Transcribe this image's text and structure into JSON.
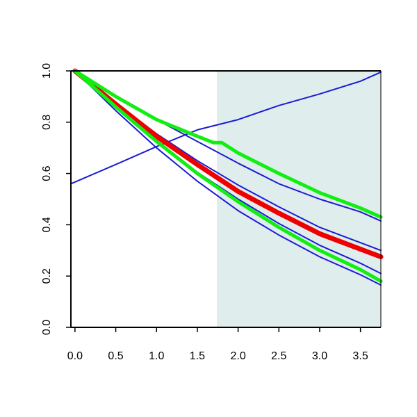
{
  "chart_data": {
    "type": "line",
    "title": "",
    "xlabel": "",
    "ylabel": "",
    "xlim": [
      -0.05,
      3.75
    ],
    "ylim": [
      0,
      1
    ],
    "x_ticks": [
      "0.0",
      "0.5",
      "1.0",
      "1.5",
      "2.0",
      "2.5",
      "3.0",
      "3.5"
    ],
    "y_ticks": [
      "0.0",
      "0.2",
      "0.4",
      "0.6",
      "0.8",
      "1.0"
    ],
    "shaded_region": {
      "x_from": 1.74,
      "x_to": 3.75,
      "color": "#e0eded"
    },
    "grid": false,
    "series": [
      {
        "color": "#1b1bd6",
        "style": "thin",
        "points": [
          [
            -0.05,
            0.56
          ],
          [
            0.5,
            0.635
          ],
          [
            1.0,
            0.705
          ],
          [
            1.5,
            0.77
          ],
          [
            2.0,
            0.81
          ],
          [
            2.5,
            0.865
          ],
          [
            3.0,
            0.91
          ],
          [
            3.5,
            0.96
          ],
          [
            3.75,
            0.995
          ]
        ]
      },
      {
        "color": "#1b1bd6",
        "style": "thin",
        "points": [
          [
            0.0,
            1.0
          ],
          [
            0.5,
            0.9
          ],
          [
            1.0,
            0.81
          ],
          [
            1.5,
            0.725
          ],
          [
            2.0,
            0.64
          ],
          [
            2.5,
            0.56
          ],
          [
            3.0,
            0.5
          ],
          [
            3.5,
            0.45
          ],
          [
            3.75,
            0.415
          ]
        ]
      },
      {
        "color": "#1b1bd6",
        "style": "thin",
        "points": [
          [
            0.0,
            1.0
          ],
          [
            0.5,
            0.875
          ],
          [
            1.0,
            0.755
          ],
          [
            1.5,
            0.65
          ],
          [
            2.0,
            0.555
          ],
          [
            2.5,
            0.47
          ],
          [
            3.0,
            0.39
          ],
          [
            3.5,
            0.33
          ],
          [
            3.75,
            0.3
          ]
        ]
      },
      {
        "color": "#1b1bd6",
        "style": "thin",
        "points": [
          [
            0.0,
            1.0
          ],
          [
            0.5,
            0.865
          ],
          [
            1.0,
            0.73
          ],
          [
            1.5,
            0.605
          ],
          [
            2.0,
            0.5
          ],
          [
            2.5,
            0.405
          ],
          [
            3.0,
            0.32
          ],
          [
            3.5,
            0.25
          ],
          [
            3.75,
            0.21
          ]
        ]
      },
      {
        "color": "#1b1bd6",
        "style": "thin",
        "points": [
          [
            0.0,
            1.0
          ],
          [
            0.5,
            0.845
          ],
          [
            1.0,
            0.7
          ],
          [
            1.5,
            0.57
          ],
          [
            2.0,
            0.455
          ],
          [
            2.5,
            0.36
          ],
          [
            3.0,
            0.275
          ],
          [
            3.5,
            0.205
          ],
          [
            3.75,
            0.165
          ]
        ]
      },
      {
        "color": "#ee0000",
        "style": "thick",
        "points": [
          [
            0.0,
            1.0
          ],
          [
            0.5,
            0.87
          ],
          [
            1.0,
            0.745
          ],
          [
            1.5,
            0.635
          ],
          [
            2.0,
            0.53
          ],
          [
            2.5,
            0.445
          ],
          [
            3.0,
            0.365
          ],
          [
            3.5,
            0.305
          ],
          [
            3.75,
            0.275
          ]
        ]
      },
      {
        "color": "#11ee11",
        "style": "thick",
        "points": [
          [
            0.0,
            1.0
          ],
          [
            0.5,
            0.9
          ],
          [
            1.0,
            0.81
          ],
          [
            1.5,
            0.745
          ],
          [
            1.7,
            0.72
          ],
          [
            1.8,
            0.72
          ],
          [
            2.0,
            0.68
          ],
          [
            2.5,
            0.6
          ],
          [
            3.0,
            0.525
          ],
          [
            3.5,
            0.465
          ],
          [
            3.75,
            0.43
          ]
        ]
      },
      {
        "color": "#11ee11",
        "style": "thick",
        "points": [
          [
            0.0,
            1.0
          ],
          [
            0.5,
            0.86
          ],
          [
            1.0,
            0.725
          ],
          [
            1.5,
            0.6
          ],
          [
            2.0,
            0.49
          ],
          [
            2.5,
            0.39
          ],
          [
            3.0,
            0.3
          ],
          [
            3.5,
            0.225
          ],
          [
            3.75,
            0.18
          ]
        ]
      }
    ]
  }
}
